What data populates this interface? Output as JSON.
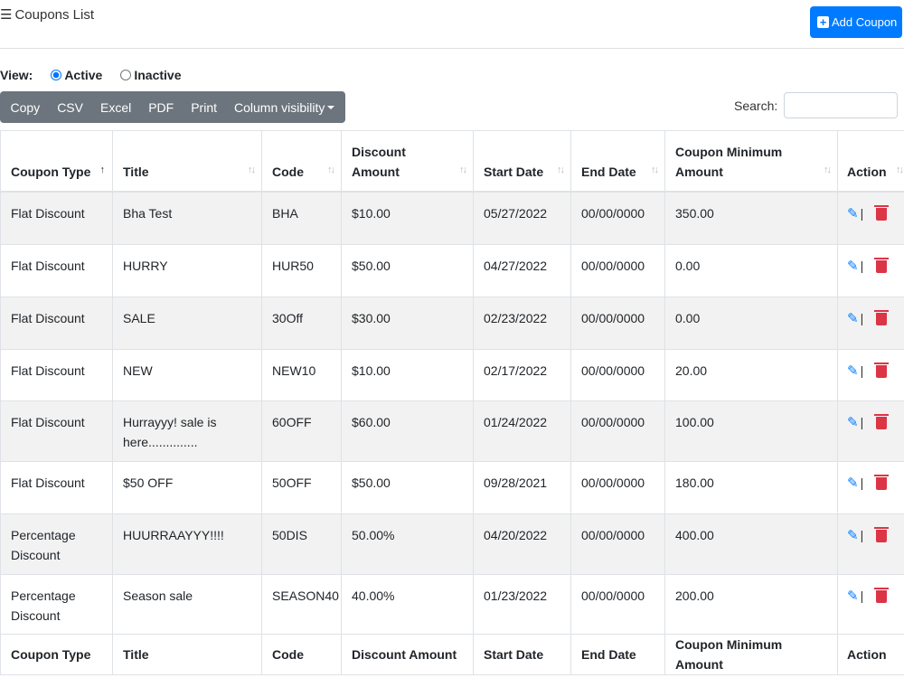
{
  "header": {
    "title": "Coupons List",
    "add_button": "Add Coupon"
  },
  "view": {
    "label": "View:",
    "options": [
      {
        "label": "Active",
        "selected": true
      },
      {
        "label": "Inactive",
        "selected": false
      }
    ]
  },
  "toolbar": {
    "buttons": [
      "Copy",
      "CSV",
      "Excel",
      "PDF",
      "Print",
      "Column visibility"
    ]
  },
  "search": {
    "label": "Search:",
    "value": ""
  },
  "table": {
    "columns": [
      "Coupon Type",
      "Title",
      "Code",
      "Discount Amount",
      "Start Date",
      "End Date",
      "Coupon Minimum Amount",
      "Action"
    ],
    "sorted_column": "Coupon Type",
    "sort_direction": "ascending",
    "rows": [
      [
        "Flat Discount",
        "Bha Test",
        "BHA",
        "$10.00",
        "05/27/2022",
        "00/00/0000",
        "350.00"
      ],
      [
        "Flat Discount",
        "HURRY",
        "HUR50",
        "$50.00",
        "04/27/2022",
        "00/00/0000",
        "0.00"
      ],
      [
        "Flat Discount",
        "SALE",
        "30Off",
        "$30.00",
        "02/23/2022",
        "00/00/0000",
        "0.00"
      ],
      [
        "Flat Discount",
        "NEW",
        "NEW10",
        "$10.00",
        "02/17/2022",
        "00/00/0000",
        "20.00"
      ],
      [
        "Flat Discount",
        "Hurrayyy! sale is here..............",
        "60OFF",
        "$60.00",
        "01/24/2022",
        "00/00/0000",
        "100.00"
      ],
      [
        "Flat Discount",
        "$50 OFF",
        "50OFF",
        "$50.00",
        "09/28/2021",
        "00/00/0000",
        "180.00"
      ],
      [
        "Percentage Discount",
        "HUURRAAYYY!!!!",
        "50DIS",
        "50.00%",
        "04/20/2022",
        "00/00/0000",
        "400.00"
      ],
      [
        "Percentage Discount",
        "Season sale",
        "SEASON40",
        "40.00%",
        "01/23/2022",
        "00/00/0000",
        "200.00"
      ]
    ]
  },
  "colors": {
    "primary": "#007bff",
    "danger": "#dc3545",
    "toolbar": "#6c757d"
  }
}
